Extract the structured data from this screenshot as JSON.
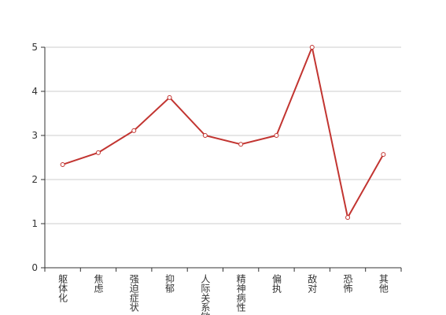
{
  "chart_data": {
    "type": "line",
    "categories": [
      "躯体化",
      "焦虑",
      "强迫症状",
      "抑郁",
      "人际关系敏感",
      "精神病性",
      "偏执",
      "敌对",
      "恐怖",
      "其他"
    ],
    "series": [
      {
        "color": "#c23531",
        "values": [
          2.34,
          2.61,
          3.11,
          3.86,
          3.0,
          2.8,
          3.0,
          5.0,
          1.14,
          2.57
        ]
      }
    ],
    "ylim": [
      0,
      5
    ],
    "yticks": [
      0,
      1,
      2,
      3,
      4,
      5
    ],
    "grid": true
  }
}
